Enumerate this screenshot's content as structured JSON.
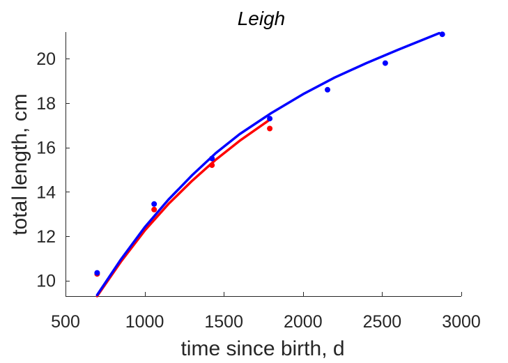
{
  "chart_data": {
    "type": "scatter",
    "title": "Leigh",
    "xlabel": "time since birth, d",
    "ylabel": "total length, cm",
    "xlim": [
      500,
      3000
    ],
    "ylim": [
      9.3,
      21.2
    ],
    "xticks": [
      500,
      1000,
      1500,
      2000,
      2500,
      3000
    ],
    "xtick_labels": [
      "500",
      "1000",
      "1500",
      "2000",
      "2500",
      "3000"
    ],
    "yticks": [
      10,
      12,
      14,
      16,
      18,
      20
    ],
    "ytick_labels": [
      "10",
      "12",
      "14",
      "16",
      "18",
      "20"
    ],
    "grid": false,
    "legend": "none",
    "series": [
      {
        "color": "#ff0000",
        "points": {
          "x": [
            700,
            1060,
            1425,
            1790
          ],
          "y": [
            10.3,
            13.2,
            15.2,
            16.85
          ]
        },
        "fit_curve": {
          "x": [
            700,
            850,
            1000,
            1150,
            1300,
            1450,
            1600,
            1780
          ],
          "y": [
            9.3,
            10.85,
            12.25,
            13.45,
            14.5,
            15.45,
            16.3,
            17.2
          ]
        }
      },
      {
        "color": "#0000ff",
        "points": {
          "x": [
            700,
            1060,
            1425,
            1790,
            2155,
            2520,
            2880
          ],
          "y": [
            10.35,
            13.45,
            15.5,
            17.3,
            18.6,
            19.8,
            21.1
          ]
        },
        "fit_curve": {
          "x": [
            700,
            850,
            1000,
            1150,
            1300,
            1450,
            1600,
            1800,
            2000,
            2200,
            2400,
            2600,
            2860
          ],
          "y": [
            9.35,
            10.95,
            12.4,
            13.65,
            14.75,
            15.75,
            16.6,
            17.55,
            18.4,
            19.15,
            19.8,
            20.4,
            21.15
          ]
        }
      }
    ]
  }
}
